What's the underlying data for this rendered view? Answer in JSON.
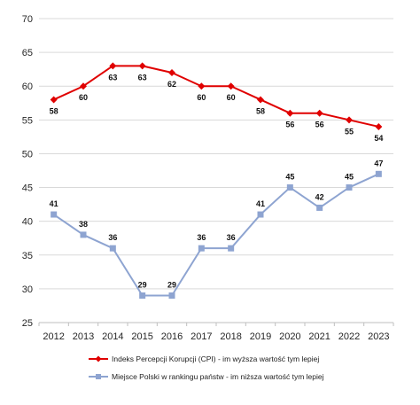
{
  "chart_data": {
    "type": "line",
    "x": [
      "2012",
      "2013",
      "2014",
      "2015",
      "2016",
      "2017",
      "2018",
      "2019",
      "2020",
      "2021",
      "2022",
      "2023"
    ],
    "ylim": [
      25,
      70
    ],
    "yticks": [
      "25",
      "30",
      "35",
      "40",
      "45",
      "50",
      "55",
      "60",
      "65",
      "70"
    ],
    "grid": "horizontal",
    "legend_position": "bottom",
    "series": [
      {
        "name": "Indeks Percepcji Korupcji (CPI) - im wyższa wartość tym lepiej",
        "values": [
          58,
          60,
          63,
          63,
          62,
          60,
          60,
          58,
          56,
          56,
          55,
          54
        ],
        "labels": [
          "58",
          "60",
          "63",
          "63",
          "62",
          "60",
          "60",
          "58",
          "56",
          "56",
          "55",
          "54"
        ],
        "color": "#e00000",
        "marker": "diamond"
      },
      {
        "name": "Miejsce Polski w rankingu państw - im niższa wartość tym lepiej",
        "values": [
          41,
          38,
          36,
          29,
          29,
          36,
          36,
          41,
          45,
          42,
          45,
          47
        ],
        "labels": [
          "41",
          "38",
          "36",
          "29",
          "29",
          "36",
          "36",
          "41",
          "45",
          "42",
          "45",
          "47"
        ],
        "color": "#8ea4d1",
        "marker": "square"
      }
    ]
  }
}
